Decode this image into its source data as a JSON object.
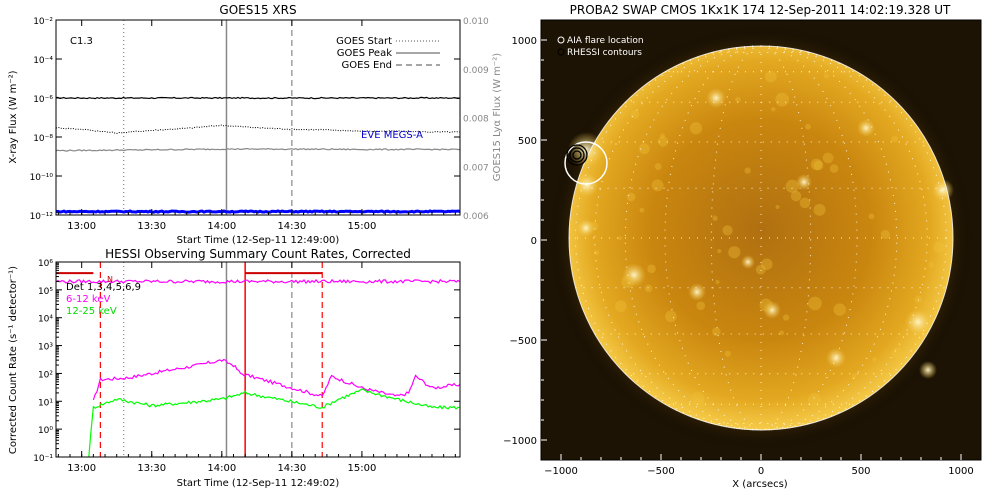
{
  "goes": {
    "title": "GOES15 XRS",
    "class_label": "C1.3",
    "ylabel": "X-ray Flux (W m⁻²)",
    "y2label": "GOES15 Lyα Flux (W m⁻²)",
    "xlabel": "Start Time (12-Sep-11 12:49:00)",
    "x_ticks": [
      "13:00",
      "13:30",
      "14:00",
      "14:30",
      "15:00"
    ],
    "y_ticks": [
      "10⁻²",
      "10⁻⁴",
      "10⁻⁶",
      "10⁻⁸",
      "10⁻¹⁰",
      "10⁻¹²"
    ],
    "y2_ticks": [
      "0.010",
      "0.009",
      "0.008",
      "0.007",
      "0.006"
    ],
    "legend": [
      "GOES Start",
      "GOES Peak",
      "GOES End"
    ],
    "eve_label": "EVE MEGS-A"
  },
  "hessi": {
    "title": "HESSI Observing Summary Count Rates, Corrected",
    "ylabel": "Corrected Count Rate (s⁻¹ detector⁻¹)",
    "xlabel": "Start Time (12-Sep-11 12:49:02)",
    "x_ticks": [
      "13:00",
      "13:30",
      "14:00",
      "14:30",
      "15:00"
    ],
    "y_ticks": [
      "10⁶",
      "10⁵",
      "10⁴",
      "10³",
      "10²",
      "10¹",
      "10⁰",
      "10⁻¹"
    ],
    "det_label": "Det 1,3,4,5,6,9",
    "bands": [
      "6-12 keV",
      "12-25 keV"
    ],
    "flag": "N"
  },
  "swap": {
    "title": "PROBA2 SWAP CMOS 1Kx1K 174 12-Sep-2011 14:02:19.328 UT",
    "legend": [
      "AIA flare location",
      "RHESSI contours"
    ],
    "x_ticks": [
      "−1000",
      "−500",
      "0",
      "500",
      "1000"
    ],
    "y_ticks": [
      "1000",
      "500",
      "0",
      "−500",
      "−1000"
    ],
    "xlabel": "X (arcsecs)"
  },
  "chart_data": [
    {
      "type": "line",
      "title": "GOES15 XRS",
      "xlabel": "Start Time (12-Sep-11 12:49:00)",
      "ylabel": "X-ray Flux (W m-2)",
      "y2label": "GOES15 Lyα Flux (W m-2)",
      "x_range": [
        "12:49",
        "15:42"
      ],
      "ylim": [
        1e-12,
        0.01
      ],
      "y_scale": "log",
      "y2lim": [
        0.006,
        0.01
      ],
      "grid": false,
      "legend_position": "top-right",
      "series": [
        {
          "name": "",
          "color": "#000000",
          "x": [
            "12:49",
            "13:10",
            "13:30",
            "13:50",
            "14:00",
            "14:20",
            "14:40",
            "15:00",
            "15:20",
            "15:42"
          ],
          "values": [
            1e-06,
            1e-06,
            1e-06,
            1e-06,
            1e-06,
            1e-06,
            1e-06,
            1e-06,
            1e-06,
            1e-06
          ]
        },
        {
          "name": "",
          "color": "#000000",
          "style": "dotted",
          "x": [
            "12:49",
            "13:00",
            "13:15",
            "13:30",
            "13:45",
            "14:00",
            "14:15",
            "14:30",
            "14:45",
            "15:00",
            "15:15",
            "15:30",
            "15:42"
          ],
          "values": [
            3e-08,
            2.5e-08,
            1.6e-08,
            2.2e-08,
            2.8e-08,
            4e-08,
            3e-08,
            2.5e-08,
            2.3e-08,
            2e-08,
            2e-08,
            1.8e-08,
            1.8e-08
          ]
        },
        {
          "name": "",
          "color": "#888888",
          "x": [
            "12:49",
            "13:30",
            "14:00",
            "14:30",
            "15:00",
            "15:42"
          ],
          "values": [
            2e-09,
            2.2e-09,
            2.4e-09,
            2.4e-09,
            2.3e-09,
            2.3e-09
          ]
        },
        {
          "name": "EVE MEGS-A",
          "color": "#0000ff",
          "x": [
            "12:49",
            "15:42"
          ],
          "values": [
            1.5e-12,
            1.5e-12
          ]
        }
      ],
      "vlines": [
        {
          "name": "GOES Start",
          "x": "13:18",
          "style": "dotted"
        },
        {
          "name": "GOES Peak",
          "x": "14:02",
          "style": "solid"
        },
        {
          "name": "GOES End",
          "x": "14:30",
          "style": "dashed"
        }
      ]
    },
    {
      "type": "line",
      "title": "HESSI Observing Summary Count Rates, Corrected",
      "xlabel": "Start Time (12-Sep-11 12:49:02)",
      "ylabel": "Corrected Count Rate (s-1 detector-1)",
      "x_range": [
        "12:49",
        "15:42"
      ],
      "ylim": [
        0.1,
        1000000
      ],
      "y_scale": "log",
      "grid": false,
      "legend_position": "top-left",
      "series": [
        {
          "name": "6-12 keV",
          "color": "#ff00ff",
          "x": [
            "13:05",
            "13:08",
            "13:20",
            "13:35",
            "13:50",
            "14:00",
            "14:05",
            "14:08",
            "14:43",
            "14:47",
            "15:00",
            "15:15",
            "15:20",
            "15:23",
            "15:30",
            "15:42"
          ],
          "values": [
            10,
            60,
            70,
            120,
            200,
            300,
            200,
            100,
            15,
            80,
            30,
            15,
            20,
            80,
            30,
            40
          ]
        },
        {
          "name": "12-25 keV",
          "color": "#00ff00",
          "x": [
            "13:03",
            "13:05",
            "13:15",
            "13:30",
            "13:45",
            "14:00",
            "14:10",
            "14:43",
            "14:50",
            "15:00",
            "15:15",
            "15:30",
            "15:42"
          ],
          "values": [
            0.1,
            6,
            12,
            7,
            9,
            12,
            20,
            6,
            12,
            25,
            12,
            6,
            6
          ]
        },
        {
          "name": "",
          "color": "#ff00ff",
          "x": [
            "12:49",
            "13:05",
            "14:17",
            "14:43",
            "15:10",
            "15:15",
            "15:42"
          ],
          "values": [
            200000,
            200000,
            200000,
            200000,
            200000,
            200000,
            200000
          ]
        }
      ],
      "vlines": [
        {
          "x": "13:08",
          "style": "dashed",
          "color": "#ff0000"
        },
        {
          "x": "13:18",
          "style": "dotted",
          "color": "#888888"
        },
        {
          "x": "14:02",
          "style": "solid",
          "color": "#888888"
        },
        {
          "x": "14:10",
          "style": "solid",
          "color": "#ff0000"
        },
        {
          "x": "14:30",
          "style": "dashed",
          "color": "#888888"
        },
        {
          "x": "14:43",
          "style": "dashed",
          "color": "#ff0000"
        }
      ]
    },
    {
      "type": "heatmap",
      "title": "PROBA2 SWAP CMOS 1Kx1K 174 12-Sep-2011 14:02:19.328 UT",
      "xlabel": "X (arcsecs)",
      "xlim": [
        -1100,
        1100
      ],
      "ylim": [
        -1100,
        1100
      ],
      "grid": true,
      "legend_position": "top-left",
      "flare_location": {
        "x": -900,
        "y": 400
      },
      "rhessi_contour_center": {
        "x": -915,
        "y": 420
      }
    }
  ]
}
